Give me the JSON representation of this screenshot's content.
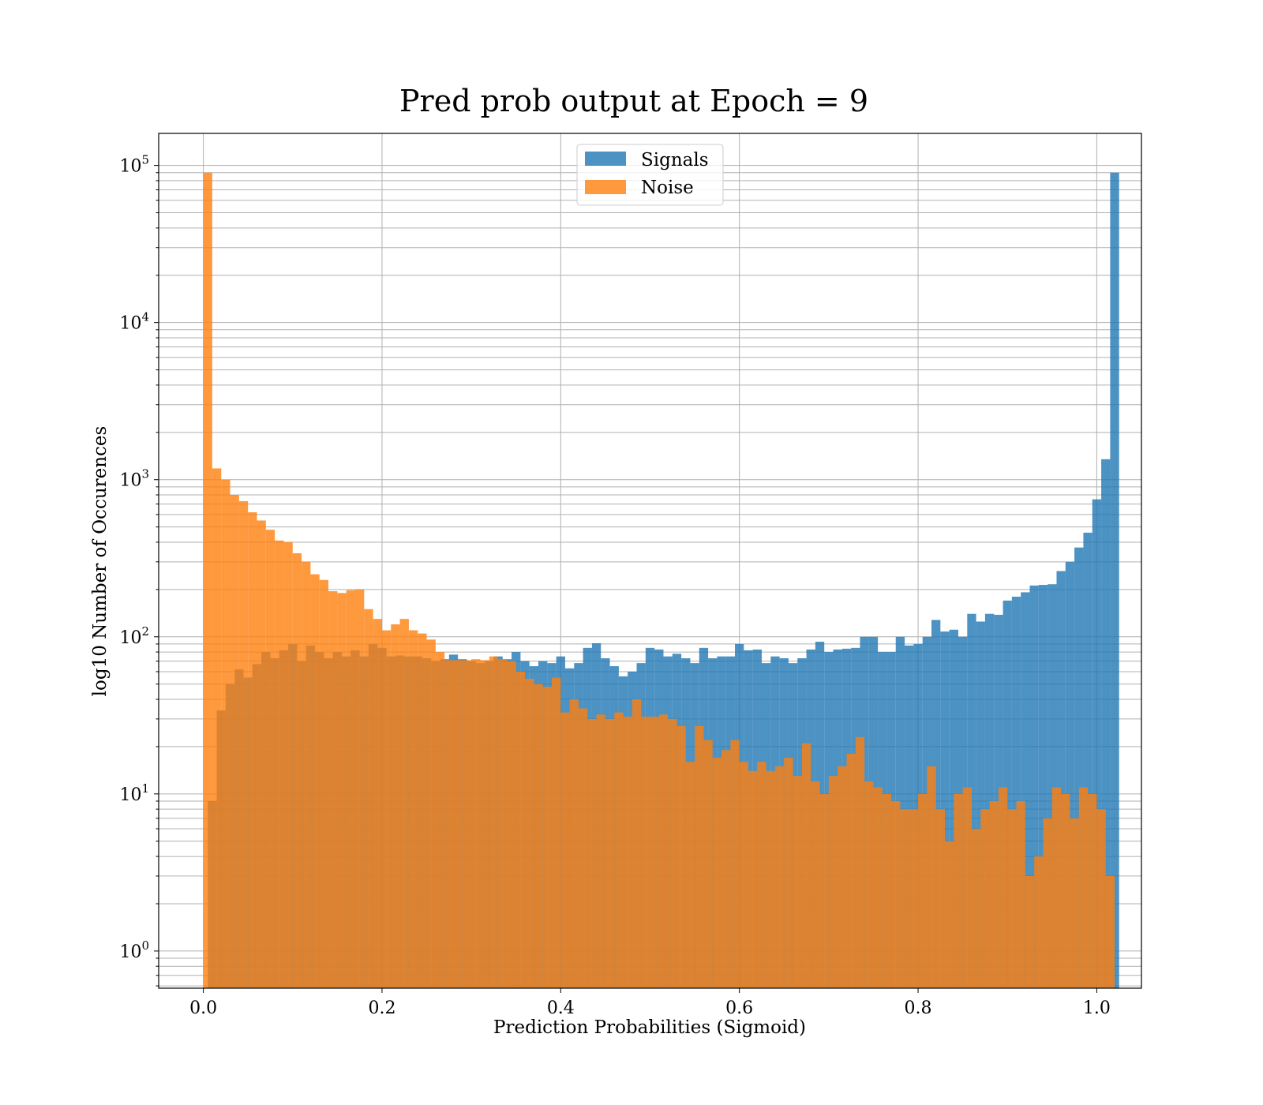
{
  "chart_data": {
    "type": "bar",
    "title": "Pred prob output at Epoch = 9",
    "xlabel": "Prediction Probabilities (Sigmoid)",
    "ylabel": "log10 Number of Occurences",
    "xlim": [
      -0.05,
      1.05
    ],
    "ylim": [
      0.58,
      160000
    ],
    "y_scale": "log",
    "grid": true,
    "legend_position": "upper-center",
    "x_ticks": [
      {
        "value": 0.0,
        "label": "0.0"
      },
      {
        "value": 0.2,
        "label": "0.2"
      },
      {
        "value": 0.4,
        "label": "0.4"
      },
      {
        "value": 0.6,
        "label": "0.6"
      },
      {
        "value": 0.8,
        "label": "0.8"
      },
      {
        "value": 1.0,
        "label": "1.0"
      }
    ],
    "y_ticks": [
      {
        "value": 1,
        "base": "10",
        "exp": "0"
      },
      {
        "value": 10,
        "base": "10",
        "exp": "1"
      },
      {
        "value": 100,
        "base": "10",
        "exp": "2"
      },
      {
        "value": 1000,
        "base": "10",
        "exp": "3"
      },
      {
        "value": 10000,
        "base": "10",
        "exp": "4"
      },
      {
        "value": 100000,
        "base": "10",
        "exp": "5"
      }
    ],
    "bin_width": 0.01,
    "series": [
      {
        "name": "Signals",
        "color": "#1f77b4",
        "opacity": 0.8,
        "bin_start": 0.005,
        "values": [
          9,
          34,
          50,
          62,
          55,
          67,
          80,
          73,
          82,
          90,
          70,
          88,
          80,
          73,
          80,
          75,
          82,
          75,
          90,
          85,
          75,
          76,
          75,
          75,
          73,
          70,
          72,
          77,
          72,
          70,
          68,
          70,
          75,
          72,
          80,
          70,
          65,
          70,
          68,
          75,
          63,
          68,
          85,
          91,
          73,
          65,
          56,
          60,
          68,
          85,
          83,
          75,
          78,
          73,
          68,
          85,
          73,
          75,
          75,
          90,
          82,
          83,
          68,
          75,
          73,
          68,
          73,
          83,
          93,
          80,
          83,
          84,
          85,
          100,
          100,
          80,
          80,
          100,
          88,
          90,
          100,
          128,
          108,
          111,
          100,
          140,
          125,
          140,
          138,
          170,
          180,
          192,
          212,
          214,
          216,
          262,
          300,
          370,
          460,
          750,
          1350,
          90000
        ]
      },
      {
        "name": "Noise",
        "color": "#ff7f0e",
        "opacity": 0.8,
        "bin_start": 0.0,
        "values": [
          90000,
          1180,
          1000,
          800,
          730,
          620,
          550,
          480,
          410,
          400,
          340,
          300,
          250,
          230,
          195,
          190,
          198,
          200,
          150,
          130,
          110,
          120,
          130,
          110,
          105,
          96,
          80,
          71,
          71,
          71,
          72,
          71,
          75,
          72,
          70,
          60,
          54,
          50,
          48,
          55,
          33,
          40,
          35,
          30,
          32,
          30,
          33,
          31,
          40,
          31,
          31,
          32,
          30,
          27,
          16,
          27,
          22,
          17,
          19,
          22,
          16,
          14,
          16,
          14,
          15,
          17,
          13,
          21,
          12,
          10,
          13,
          15,
          18,
          23,
          12,
          11,
          10,
          9,
          8,
          8,
          10,
          15,
          8,
          5,
          10,
          11,
          6,
          8,
          9,
          11,
          8,
          9,
          3,
          4,
          7,
          11,
          10,
          7,
          11,
          10,
          8,
          3
        ]
      }
    ]
  }
}
